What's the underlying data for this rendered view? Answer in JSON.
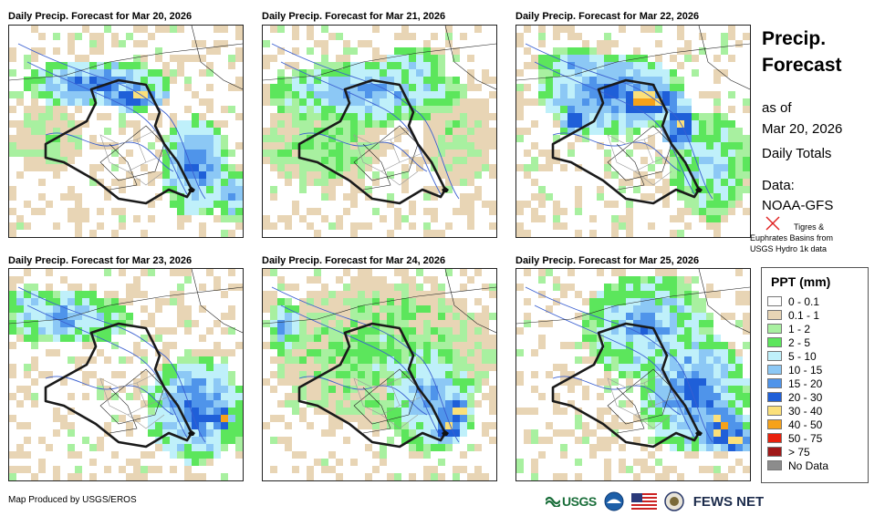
{
  "panels": [
    {
      "title": "Daily Precip. Forecast for Mar 20, 2026"
    },
    {
      "title": "Daily Precip. Forecast for Mar 21, 2026"
    },
    {
      "title": "Daily Precip. Forecast for Mar 22, 2026"
    },
    {
      "title": "Daily Precip. Forecast for Mar 23, 2026"
    },
    {
      "title": "Daily Precip. Forecast for Mar 24, 2026"
    },
    {
      "title": "Daily Precip. Forecast for Mar 25, 2026"
    }
  ],
  "side": {
    "title_line1": "Precip.",
    "title_line2": "Forecast",
    "asof": "as of",
    "date": "Mar 20, 2026",
    "totals": "Daily Totals",
    "data_label": "Data:",
    "data_source": "NOAA-GFS",
    "basins_line1": "Tigres &",
    "basins_line2": "Euphrates Basins from",
    "basins_line3": "USGS Hydro 1k data"
  },
  "legend": {
    "title": "PPT (mm)",
    "items": [
      {
        "label": "0 - 0.1",
        "color": "#ffffff"
      },
      {
        "label": "0.1 - 1",
        "color": "#e8d5b5"
      },
      {
        "label": "1 - 2",
        "color": "#a8f0a0"
      },
      {
        "label": "2 - 5",
        "color": "#5ce65c"
      },
      {
        "label": "5 - 10",
        "color": "#bff0fa"
      },
      {
        "label": "10 - 15",
        "color": "#8cc8f5"
      },
      {
        "label": "15 - 20",
        "color": "#4f94ea"
      },
      {
        "label": "20 - 30",
        "color": "#1f5fd8"
      },
      {
        "label": "30 - 40",
        "color": "#fbe07a"
      },
      {
        "label": "40 - 50",
        "color": "#f6a21a"
      },
      {
        "label": "50 - 75",
        "color": "#e8200c"
      },
      {
        "label": "> 75",
        "color": "#a01818"
      },
      {
        "label": "No Data",
        "color": "#8c8c8c"
      }
    ]
  },
  "footer": {
    "credit": "Map Produced by USGS/EROS",
    "usgs_logo": "USGS",
    "fews_logo": "FEWS NET"
  }
}
